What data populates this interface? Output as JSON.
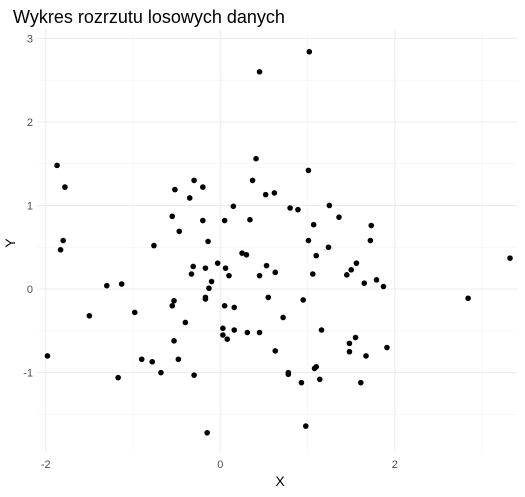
{
  "chart_data": {
    "type": "scatter",
    "title": "Wykres rozrzutu losowych danych",
    "xlabel": "X",
    "ylabel": "Y",
    "xlim": [
      -2.1,
      3.4
    ],
    "ylim": [
      -1.95,
      3.1
    ],
    "x_ticks": [
      -2,
      0,
      2
    ],
    "y_ticks": [
      -1,
      0,
      1,
      2,
      3
    ],
    "grid": true,
    "point_color": "#000000",
    "points": [
      {
        "x": 1.02,
        "y": 2.84
      },
      {
        "x": 0.45,
        "y": 2.6
      },
      {
        "x": 0.41,
        "y": 1.56
      },
      {
        "x": 1.01,
        "y": 1.42
      },
      {
        "x": -1.87,
        "y": 1.48
      },
      {
        "x": -1.78,
        "y": 1.22
      },
      {
        "x": -0.3,
        "y": 1.3
      },
      {
        "x": -0.2,
        "y": 1.22
      },
      {
        "x": -0.52,
        "y": 1.19
      },
      {
        "x": 0.37,
        "y": 1.3
      },
      {
        "x": 0.52,
        "y": 1.13
      },
      {
        "x": 0.62,
        "y": 1.15
      },
      {
        "x": -0.35,
        "y": 1.09
      },
      {
        "x": 0.15,
        "y": 0.99
      },
      {
        "x": 0.8,
        "y": 0.97
      },
      {
        "x": 0.89,
        "y": 0.95
      },
      {
        "x": 1.25,
        "y": 1.0
      },
      {
        "x": 1.36,
        "y": 0.86
      },
      {
        "x": 1.73,
        "y": 0.76
      },
      {
        "x": 1.72,
        "y": 0.58
      },
      {
        "x": -0.55,
        "y": 0.87
      },
      {
        "x": -0.2,
        "y": 0.82
      },
      {
        "x": 0.05,
        "y": 0.82
      },
      {
        "x": 0.34,
        "y": 0.83
      },
      {
        "x": 1.07,
        "y": 0.77
      },
      {
        "x": -0.47,
        "y": 0.69
      },
      {
        "x": -1.8,
        "y": 0.58
      },
      {
        "x": -1.83,
        "y": 0.47
      },
      {
        "x": -0.76,
        "y": 0.52
      },
      {
        "x": -0.14,
        "y": 0.57
      },
      {
        "x": 1.01,
        "y": 0.58
      },
      {
        "x": 1.24,
        "y": 0.5
      },
      {
        "x": 0.25,
        "y": 0.43
      },
      {
        "x": 0.3,
        "y": 0.41
      },
      {
        "x": 1.1,
        "y": 0.4
      },
      {
        "x": 3.32,
        "y": 0.37
      },
      {
        "x": 1.56,
        "y": 0.31
      },
      {
        "x": -0.03,
        "y": 0.31
      },
      {
        "x": 0.53,
        "y": 0.28
      },
      {
        "x": -0.31,
        "y": 0.27
      },
      {
        "x": -0.17,
        "y": 0.25
      },
      {
        "x": 0.06,
        "y": 0.25
      },
      {
        "x": 1.5,
        "y": 0.23
      },
      {
        "x": -0.33,
        "y": 0.18
      },
      {
        "x": 0.45,
        "y": 0.16
      },
      {
        "x": 0.63,
        "y": 0.2
      },
      {
        "x": 1.06,
        "y": 0.18
      },
      {
        "x": 1.45,
        "y": 0.17
      },
      {
        "x": 0.1,
        "y": 0.16
      },
      {
        "x": -0.1,
        "y": 0.09
      },
      {
        "x": 1.79,
        "y": 0.11
      },
      {
        "x": 1.65,
        "y": 0.07
      },
      {
        "x": 1.87,
        "y": 0.03
      },
      {
        "x": -1.3,
        "y": 0.04
      },
      {
        "x": -1.13,
        "y": 0.06
      },
      {
        "x": -0.13,
        "y": 0.01
      },
      {
        "x": -0.17,
        "y": -0.1
      },
      {
        "x": -0.17,
        "y": -0.12
      },
      {
        "x": 0.55,
        "y": -0.1
      },
      {
        "x": 0.95,
        "y": -0.13
      },
      {
        "x": -0.53,
        "y": -0.14
      },
      {
        "x": -0.55,
        "y": -0.2
      },
      {
        "x": 0.05,
        "y": -0.2
      },
      {
        "x": 0.16,
        "y": -0.22
      },
      {
        "x": -0.98,
        "y": -0.28
      },
      {
        "x": -1.5,
        "y": -0.32
      },
      {
        "x": 0.72,
        "y": -0.34
      },
      {
        "x": -0.4,
        "y": -0.4
      },
      {
        "x": 0.03,
        "y": -0.47
      },
      {
        "x": 0.16,
        "y": -0.49
      },
      {
        "x": 1.16,
        "y": -0.49
      },
      {
        "x": 0.03,
        "y": -0.55
      },
      {
        "x": 0.45,
        "y": -0.52
      },
      {
        "x": 0.08,
        "y": -0.6
      },
      {
        "x": 0.31,
        "y": -0.52
      },
      {
        "x": 1.55,
        "y": -0.58
      },
      {
        "x": -0.53,
        "y": -0.62
      },
      {
        "x": 1.48,
        "y": -0.65
      },
      {
        "x": 1.91,
        "y": -0.7
      },
      {
        "x": 0.63,
        "y": -0.74
      },
      {
        "x": 1.48,
        "y": -0.75
      },
      {
        "x": 1.67,
        "y": -0.8
      },
      {
        "x": -1.98,
        "y": -0.8
      },
      {
        "x": -0.9,
        "y": -0.84
      },
      {
        "x": -0.48,
        "y": -0.84
      },
      {
        "x": -0.78,
        "y": -0.87
      },
      {
        "x": 1.08,
        "y": -0.95
      },
      {
        "x": 1.1,
        "y": -0.93
      },
      {
        "x": -0.68,
        "y": -1.0
      },
      {
        "x": 0.78,
        "y": -1.0
      },
      {
        "x": 0.78,
        "y": -1.02
      },
      {
        "x": -0.3,
        "y": -1.03
      },
      {
        "x": -1.17,
        "y": -1.06
      },
      {
        "x": 1.14,
        "y": -1.08
      },
      {
        "x": 0.93,
        "y": -1.12
      },
      {
        "x": 1.61,
        "y": -1.12
      },
      {
        "x": 2.84,
        "y": -0.11
      },
      {
        "x": 0.98,
        "y": -1.64
      },
      {
        "x": -0.15,
        "y": -1.72
      }
    ]
  }
}
